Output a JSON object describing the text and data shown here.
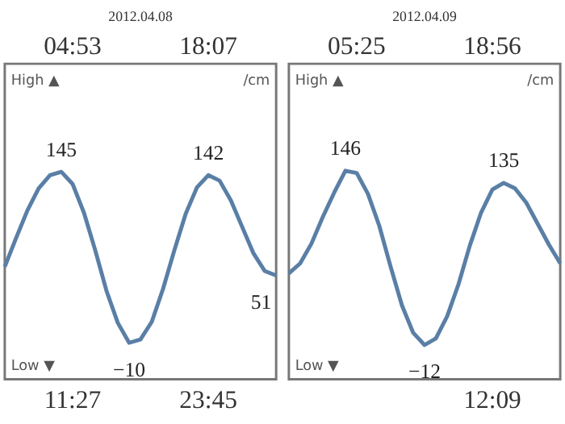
{
  "chart_data": [
    {
      "type": "line",
      "title": "2012.04.08",
      "color": "#5a7fa6",
      "categories": [
        null,
        null,
        null,
        null,
        null,
        null,
        null,
        null,
        null,
        null,
        null,
        null,
        null,
        null,
        null,
        null,
        null,
        null,
        null,
        null,
        null,
        null,
        null,
        null,
        null
      ],
      "values": [
        59,
        85,
        110,
        130,
        142,
        145,
        134,
        108,
        74,
        37,
        8,
        -10,
        -7,
        9,
        39,
        74,
        107,
        131,
        142,
        137,
        119,
        95,
        71,
        55,
        51
      ],
      "value_labels": [
        null,
        null,
        null,
        null,
        null,
        "145",
        null,
        null,
        null,
        null,
        null,
        "−10",
        null,
        null,
        null,
        null,
        null,
        null,
        "142",
        null,
        null,
        null,
        null,
        null,
        "51"
      ],
      "ylim": [
        -43,
        243
      ],
      "tick_labels": false,
      "annotations": [
        "04:53",
        "18:07",
        "11:27",
        "23:45",
        "High ▲",
        "/cm",
        "Low ▼"
      ]
    },
    {
      "type": "line",
      "title": "2012.04.09",
      "color": "#5a7fa6",
      "categories": [
        null,
        null,
        null,
        null,
        null,
        null,
        null,
        null,
        null,
        null,
        null,
        null,
        null,
        null,
        null,
        null,
        null,
        null,
        null,
        null,
        null,
        null,
        null,
        null,
        null
      ],
      "values": [
        53,
        62,
        80,
        104,
        126,
        146,
        144,
        125,
        96,
        59,
        24,
        -1,
        -12,
        -6,
        14,
        43,
        78,
        108,
        129,
        135,
        130,
        117,
        98,
        79,
        62
      ],
      "value_labels": [
        null,
        null,
        null,
        null,
        null,
        "146",
        null,
        null,
        null,
        null,
        null,
        null,
        "−12",
        null,
        null,
        null,
        null,
        null,
        null,
        "135",
        null,
        null,
        null,
        null,
        null
      ],
      "ylim": [
        -43,
        243
      ],
      "tick_labels": false,
      "annotations": [
        "05:25",
        "18:56",
        null,
        "12:09",
        "High ▲",
        "/cm",
        "Low ▼"
      ]
    }
  ]
}
